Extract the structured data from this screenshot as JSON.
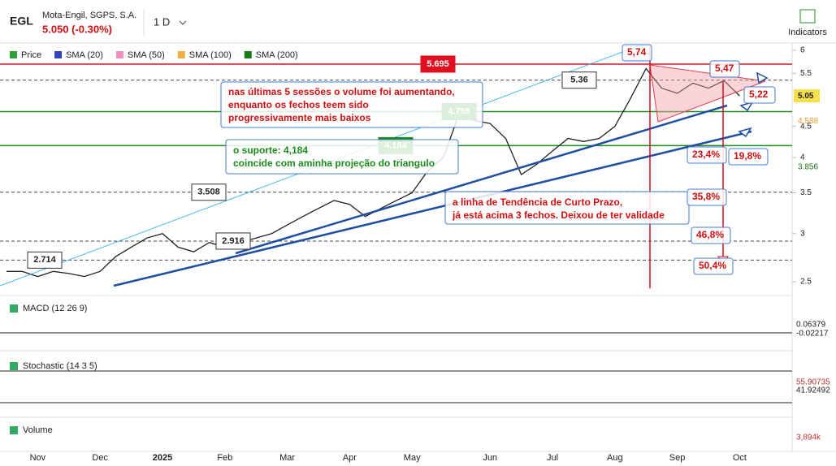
{
  "header": {
    "symbol": "EGL",
    "name": "Mota-Engil, SGPS, S.A.",
    "quote": "5.050 (-0.30%)",
    "interval": "1 D",
    "indicators": "Indicators"
  },
  "legend": [
    "Price",
    "SMA (20)",
    "SMA (50)",
    "SMA (100)",
    "SMA (200)"
  ],
  "legend_colors": [
    "#2e9e3e",
    "#3344bb",
    "#f090c0",
    "#f0b040",
    "#1a7a1a"
  ],
  "chart_data": {
    "type": "line",
    "categories": [
      null,
      null,
      "Nov",
      null,
      null,
      null,
      "Dec",
      null,
      null,
      null,
      "2025",
      null,
      null,
      null,
      "Feb",
      null,
      null,
      null,
      "Mar",
      null,
      null,
      null,
      "Apr",
      null,
      null,
      null,
      "May",
      null,
      null,
      null,
      null,
      "Jun",
      null,
      null,
      null,
      "Jul",
      null,
      null,
      null,
      "Aug",
      null,
      null,
      null,
      "Sep",
      null,
      null,
      null,
      "Oct"
    ],
    "series": [
      {
        "name": "Price",
        "color": "#222222",
        "values": [
          2.6,
          2.6,
          2.55,
          2.6,
          2.58,
          2.55,
          2.6,
          2.75,
          2.85,
          2.95,
          3.0,
          2.85,
          2.8,
          2.9,
          2.85,
          2.9,
          2.95,
          3.0,
          3.1,
          3.2,
          3.3,
          3.4,
          3.35,
          3.2,
          3.3,
          3.4,
          3.5,
          3.8,
          4.0,
          4.7,
          4.6,
          4.55,
          4.3,
          3.75,
          3.9,
          4.1,
          4.3,
          4.25,
          4.3,
          4.5,
          5.0,
          5.6,
          5.2,
          5.1,
          5.3,
          5.2,
          5.35,
          5.05
        ]
      }
    ],
    "ylim": [
      2.44,
      6.13
    ],
    "log": true,
    "yticks": [
      2.5,
      3,
      3.5,
      4,
      4.5,
      5.5,
      6
    ],
    "levels": [
      5.695,
      5.36,
      4.758,
      4.184,
      3.508,
      2.916,
      2.714
    ],
    "level_colors": [
      "#e01020",
      "#444444",
      "#1a8a1a",
      "#1a8a1a",
      "#444444",
      "#444444",
      "#444444"
    ],
    "price_tags": [
      5.05,
      4.588,
      3.856
    ],
    "price_tag_colors": [
      "#222222",
      "#e0a030",
      "#1a7a1a"
    ],
    "annotations": [
      "nas últimas 5 sessões o volume foi aumentando,",
      "enquanto os fechos teem sido",
      "progressivamente mais baixos",
      "o suporte: 4,184",
      "coincide com aminha projeção do triangulo",
      "a linha de Tendência de Curto Prazo,",
      "já está acima 3 fechos. Deixou de ter validade",
      "5,74",
      "5,47",
      "5,22",
      "23,4%",
      "19,8%",
      "35,8%",
      "46,8%",
      "50,4%"
    ]
  },
  "panes": {
    "macd": "MACD (12 26 9)",
    "macd_values": [
      "0.06379",
      "-0.02217"
    ],
    "stochastic": "Stochastic (14 3 5)",
    "stochastic_values": [
      "55.90735",
      "41.92492"
    ],
    "volume": "Volume",
    "volume_value": "3,894k"
  }
}
